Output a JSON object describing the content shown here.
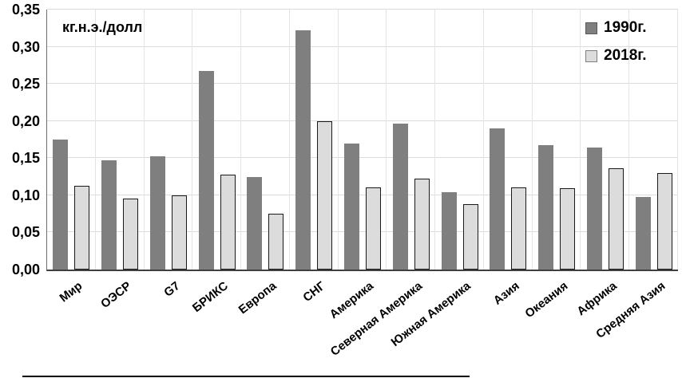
{
  "figure": {
    "unit_label": "кг.н.э./долл"
  },
  "chart_data": {
    "type": "bar",
    "title": "",
    "ylabel": "кг.н.э./долл",
    "xlabel": "",
    "ylim": [
      0,
      0.35
    ],
    "ytick_step": 0.05,
    "ytick_labels": [
      "0,00",
      "0,05",
      "0,10",
      "0,15",
      "0,20",
      "0,25",
      "0,30",
      "0,35"
    ],
    "grid": true,
    "legend_position": "top-right",
    "categories": [
      "Мир",
      "ОЭСР",
      "G7",
      "БРИКС",
      "Европа",
      "СНГ",
      "Америка",
      "Северная Америка",
      "Южная Америка",
      "Азия",
      "Океания",
      "Африка",
      "Средняя Азия"
    ],
    "series": [
      {
        "name": "1990г.",
        "color": "#7f7f7f",
        "values": [
          0.175,
          0.147,
          0.152,
          0.267,
          0.125,
          0.322,
          0.17,
          0.197,
          0.104,
          0.19,
          0.168,
          0.164,
          0.098
        ]
      },
      {
        "name": "2018г.",
        "color": "#dcdcdc",
        "border_color": "#1a1a1a",
        "values": [
          0.113,
          0.096,
          0.1,
          0.128,
          0.075,
          0.2,
          0.111,
          0.122,
          0.088,
          0.111,
          0.11,
          0.136,
          0.13
        ]
      }
    ]
  },
  "colors": {
    "background": "#ffffff",
    "gridline": "#dcdcdc",
    "axis": "#3f3f3f",
    "text": "#000000"
  }
}
